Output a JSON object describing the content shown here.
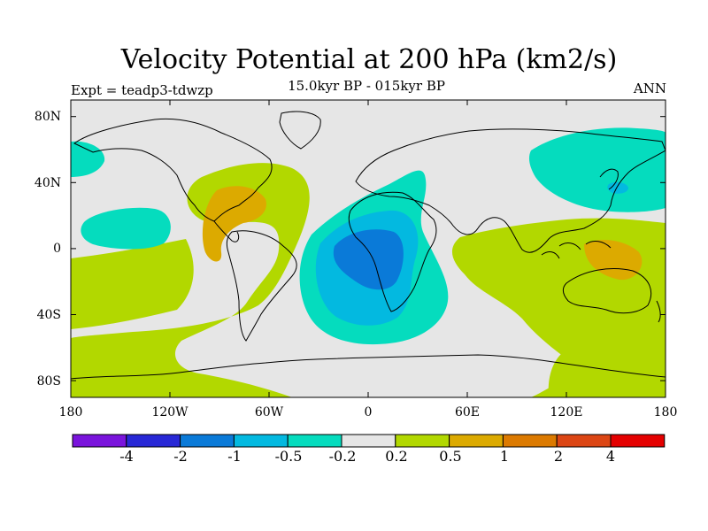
{
  "title": "Velocity Potential at 200 hPa (km2/s)",
  "subtitle": "15.0kyr BP - 015kyr BP",
  "experiment": "Expt = teadp3-tdwzp",
  "season": "ANN",
  "lat_labels": [
    "80N",
    "40N",
    "0",
    "40S",
    "80S"
  ],
  "lon_labels": [
    "180",
    "120W",
    "60W",
    "0",
    "60E",
    "120E",
    "180"
  ],
  "colorbar": {
    "colors": [
      "#7a14dc",
      "#2828d6",
      "#0a7ad8",
      "#03b9e0",
      "#05dcbe",
      "#e6e6e6",
      "#b2d800",
      "#dcaa00",
      "#dc7a00",
      "#dc4614",
      "#e40000"
    ],
    "labels": [
      "-4",
      "-2",
      "-1",
      "-0.5",
      "-0.2",
      "0.2",
      "0.5",
      "1",
      "2",
      "4"
    ]
  },
  "map_colors": {
    "background": "#e6e6e6",
    "cyan_light": "#05dcbe",
    "cyan": "#03b9e0",
    "blue": "#0a7ad8",
    "green": "#b2d800",
    "orange": "#dcaa00",
    "dark_orange": "#dc7a00",
    "coastline": "#000000"
  }
}
